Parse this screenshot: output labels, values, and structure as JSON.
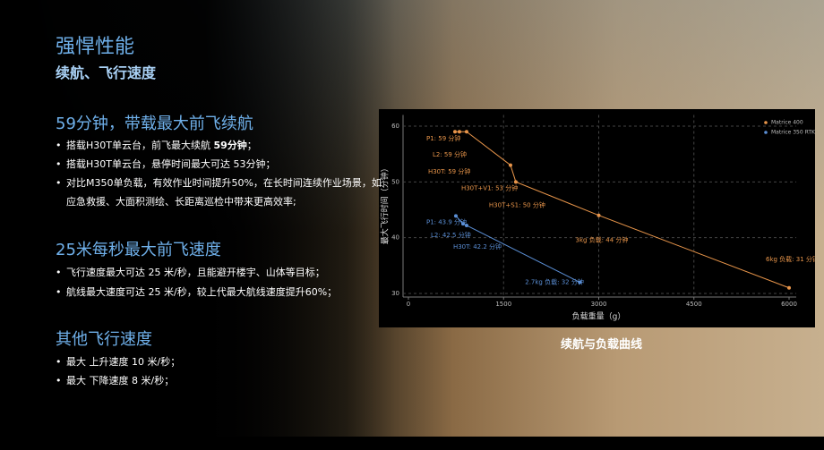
{
  "header": {
    "title": "强悍性能",
    "subtitle": "续航、飞行速度"
  },
  "sections": [
    {
      "heading": "59分钟，带载最大前飞续航",
      "bullets": [
        [
          {
            "text": "搭载H30T单云台，前飞最大续航 "
          },
          {
            "text": "59分钟",
            "bold": true
          },
          {
            "text": "；"
          }
        ],
        [
          {
            "text": "搭载H30T单云台，悬停时间最大可达 53分钟；"
          }
        ],
        [
          {
            "text": "对比M350单负载，有效作业时间提升50%，在长时间连续作业场景，如应急救援、大面积测绘、长距离巡检中带来更高效率;"
          }
        ]
      ]
    },
    {
      "heading": "25米每秒最大前飞速度",
      "bullets": [
        [
          {
            "text": "飞行速度最大可达 25 米/秒，且能避开楼宇、山体等目标；"
          }
        ],
        [
          {
            "text": "航线最大速度可达 25 米/秒，较上代最大航线速度提升60%；"
          }
        ]
      ]
    },
    {
      "heading": "其他飞行速度",
      "bullets": [
        [
          {
            "text": "最大 上升速度 10 米/秒；"
          }
        ],
        [
          {
            "text": "最大 下降速度 8 米/秒；"
          }
        ]
      ]
    }
  ],
  "chart_data": {
    "type": "line",
    "caption": "续航与负载曲线",
    "x_label": "负载重量（g）",
    "y_label": "最大飞行时间（分钟）",
    "xlim": [
      0,
      6000
    ],
    "xticks": [
      0,
      1500,
      3000,
      4500,
      6000
    ],
    "ylim": [
      30,
      62
    ],
    "yticks": [
      30,
      40,
      50,
      60
    ],
    "grid": true,
    "legend": "top-right",
    "series": [
      {
        "name": "Matrice 400",
        "color": "#e8954a",
        "x": [
          734,
          804,
          917,
          1609,
          1693,
          3000,
          6000
        ],
        "values": [
          59,
          59,
          59,
          53,
          50,
          44,
          31
        ],
        "value_labels": [
          "P1: 59 分钟",
          "L2: 59 分钟",
          "H30T: 59 分钟",
          "H30T+V1: 53 分钟",
          "H30T+S1: 50 分钟",
          "3kg 负载: 44 分钟",
          "6kg 负载: 31 分钟"
        ]
      },
      {
        "name": "Matrice 350 RTK",
        "color": "#5b8fd6",
        "x": [
          748,
          861,
          917,
          2700
        ],
        "values": [
          43.9,
          42.5,
          42.2,
          32
        ],
        "value_labels": [
          "P1: 43.9 分钟",
          "L2: 42.5 分钟",
          "H30T: 42.2 分钟",
          "2.7kg 负载: 32 分钟"
        ]
      }
    ]
  }
}
